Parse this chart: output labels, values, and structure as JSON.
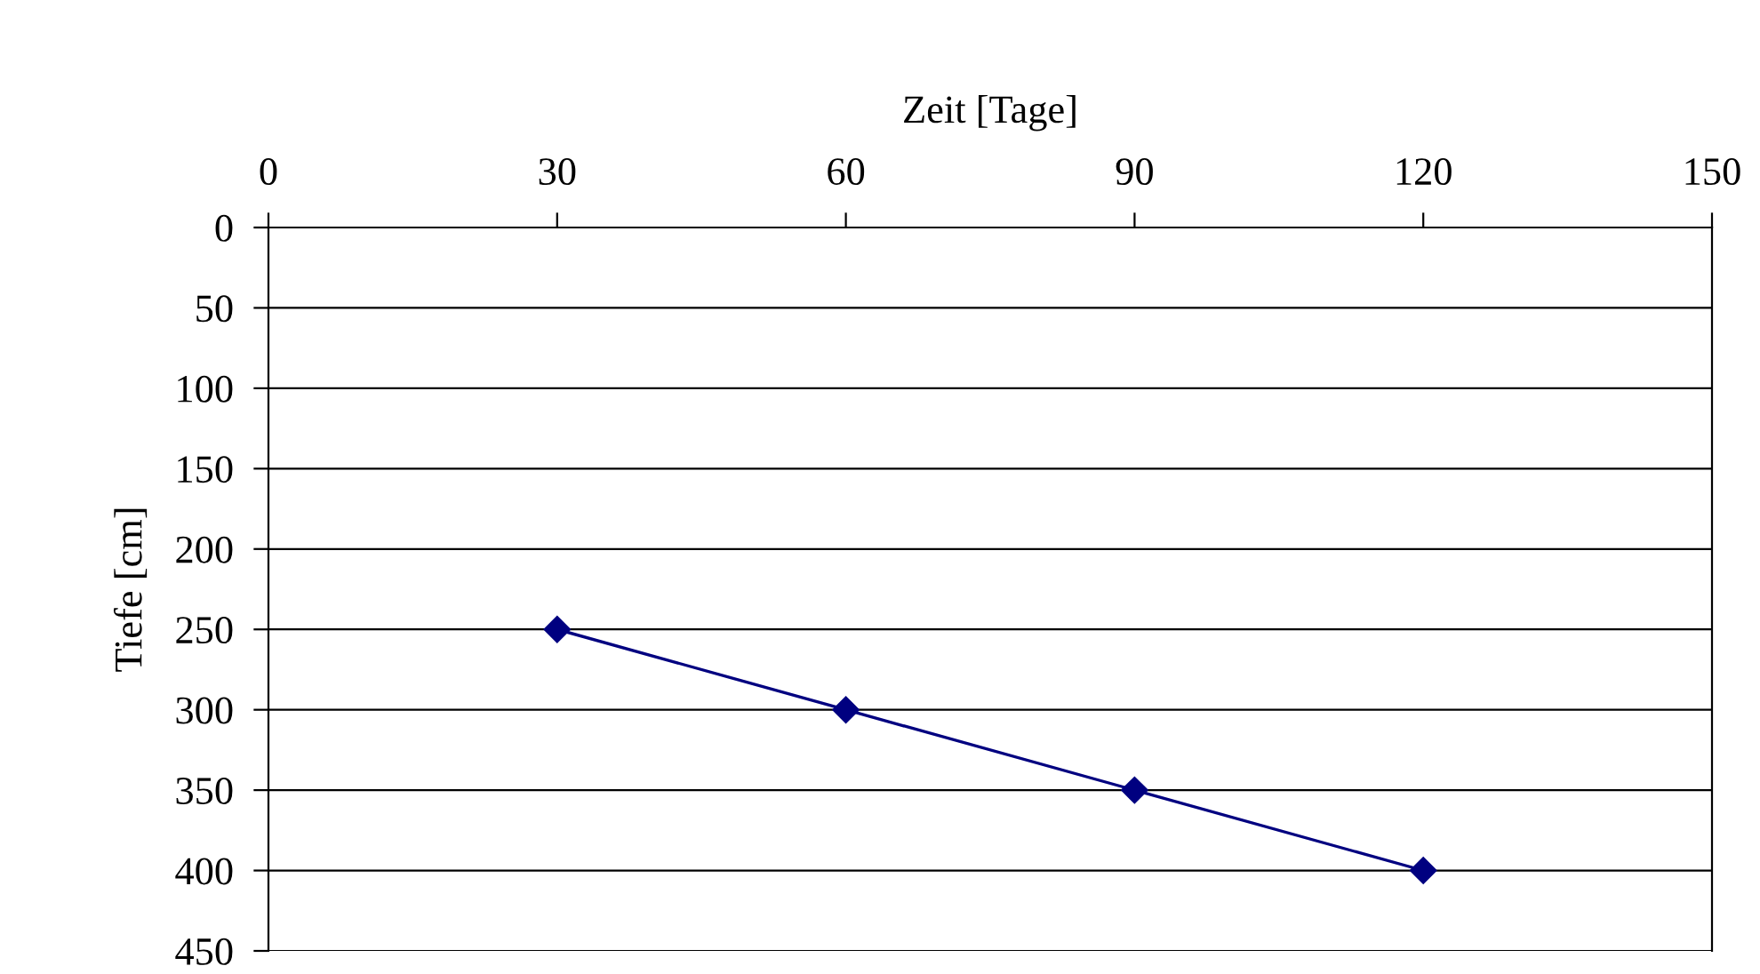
{
  "chart_data": {
    "type": "line",
    "xlabel": "Zeit [Tage]",
    "ylabel": "Tiefe [cm]",
    "x": [
      30,
      60,
      90,
      120
    ],
    "series": [
      {
        "color": "#000080",
        "values": [
          250,
          300,
          350,
          400
        ]
      }
    ],
    "xlim": [
      0,
      150
    ],
    "xticks": [
      0,
      30,
      60,
      90,
      120,
      150
    ],
    "ylim": [
      450,
      0
    ],
    "yticks": [
      0,
      50,
      100,
      150,
      200,
      250,
      300,
      350,
      400,
      450
    ],
    "grid": "y",
    "marker": "diamond",
    "line_style": "solid",
    "legend": false
  }
}
